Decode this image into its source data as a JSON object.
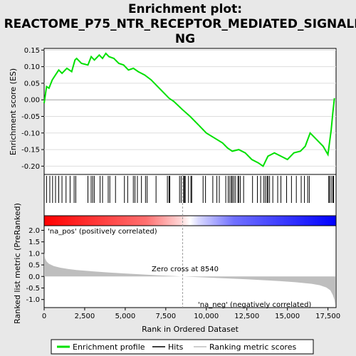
{
  "title_lines": [
    "Enrichment plot:",
    "REACTOME_P75_NTR_RECEPTOR_MEDIATED_SIGNALLI",
    "NG"
  ],
  "colors": {
    "enrichment_line": "#00e000",
    "hits": "#000000",
    "ranking_fill": "#bebebe",
    "zero_cross_line": "#a0a0a0",
    "pos_label": "#e00000",
    "neg_label": "#0000c0",
    "background": "#e8e8e8",
    "plot_background": "#ffffff"
  },
  "chart_data": [
    {
      "type": "line",
      "name": "enrichment-profile",
      "ylabel": "Enrichment score (ES)",
      "xlim": [
        0,
        18000
      ],
      "ylim": [
        -0.225,
        0.155
      ],
      "yticks": [
        0.15,
        0.1,
        0.05,
        0.0,
        -0.05,
        -0.1,
        -0.15,
        -0.2
      ],
      "ytick_labels": [
        "0.15",
        "0.10",
        "0.05",
        "0.00",
        "-0.05",
        "-0.10",
        "-0.15",
        "-0.20"
      ],
      "x": [
        0,
        150,
        300,
        500,
        700,
        900,
        1100,
        1400,
        1700,
        1900,
        2000,
        2300,
        2700,
        2900,
        3100,
        3400,
        3600,
        3800,
        4000,
        4300,
        4600,
        4900,
        5200,
        5500,
        5800,
        6200,
        6600,
        7000,
        7400,
        7700,
        8000,
        8540,
        9000,
        9500,
        10000,
        10500,
        11000,
        11300,
        11600,
        12000,
        12400,
        12800,
        13200,
        13500,
        13800,
        14200,
        14600,
        15000,
        15400,
        15800,
        16100,
        16400,
        16800,
        17200,
        17500,
        17700,
        17800,
        17900
      ],
      "y": [
        -0.01,
        0.04,
        0.035,
        0.06,
        0.075,
        0.09,
        0.08,
        0.095,
        0.085,
        0.12,
        0.125,
        0.11,
        0.105,
        0.13,
        0.12,
        0.135,
        0.125,
        0.14,
        0.13,
        0.125,
        0.11,
        0.105,
        0.09,
        0.095,
        0.085,
        0.075,
        0.06,
        0.04,
        0.02,
        0.005,
        -0.005,
        -0.03,
        -0.05,
        -0.075,
        -0.1,
        -0.115,
        -0.13,
        -0.145,
        -0.155,
        -0.15,
        -0.16,
        -0.18,
        -0.19,
        -0.2,
        -0.17,
        -0.16,
        -0.17,
        -0.18,
        -0.16,
        -0.155,
        -0.14,
        -0.1,
        -0.12,
        -0.14,
        -0.165,
        -0.09,
        -0.04,
        0.005
      ]
    },
    {
      "type": "hits",
      "name": "hits",
      "positions": [
        150,
        350,
        520,
        700,
        900,
        1100,
        1350,
        1600,
        1850,
        1950,
        2700,
        2900,
        3000,
        3100,
        3450,
        3600,
        3950,
        4050,
        4400,
        4950,
        5150,
        5500,
        5600,
        5750,
        6000,
        6250,
        6350,
        6900,
        7600,
        7700,
        7750,
        8350,
        8450,
        8600,
        8650,
        8700,
        8900,
        9050,
        9100,
        9800,
        9950,
        10400,
        10650,
        10800,
        11200,
        11350,
        11450,
        11550,
        11600,
        11700,
        11800,
        11950,
        12000,
        12100,
        12300,
        12850,
        13150,
        13350,
        13550,
        13650,
        13750,
        13800,
        13900,
        14100,
        14400,
        14600,
        14950,
        15250,
        15550,
        15850,
        16050,
        16250,
        16350,
        17550,
        17600,
        17700,
        17800,
        17850
      ]
    },
    {
      "type": "area",
      "name": "ranked-list-metric",
      "ylabel": "Ranked list metric (PreRanked)",
      "xlabel": "Rank in Ordered Dataset",
      "xlim": [
        0,
        18000
      ],
      "ylim": [
        -1.35,
        2.2
      ],
      "xticks": [
        0,
        2500,
        5000,
        7500,
        10000,
        12500,
        15000,
        17500
      ],
      "xtick_labels": [
        "0",
        "2,500",
        "5,000",
        "7,500",
        "10,000",
        "12,500",
        "15,000",
        "17,500"
      ],
      "yticks": [
        2.0,
        1.5,
        1.0,
        0.5,
        0.0,
        -0.5,
        -1.0
      ],
      "ytick_labels": [
        "2.0",
        "1.5",
        "1.0",
        "0.5",
        "0.0",
        "-0.5",
        "-1.0"
      ],
      "x": [
        0,
        50,
        150,
        300,
        600,
        1000,
        1500,
        2000,
        3000,
        4000,
        5000,
        6000,
        7000,
        8000,
        8540,
        9500,
        10500,
        11500,
        12500,
        13500,
        14500,
        15500,
        16500,
        17000,
        17400,
        17650,
        17800,
        17900,
        17950
      ],
      "values": [
        1.05,
        0.8,
        0.65,
        0.55,
        0.45,
        0.38,
        0.32,
        0.28,
        0.22,
        0.17,
        0.13,
        0.09,
        0.05,
        0.02,
        0.0,
        -0.03,
        -0.06,
        -0.09,
        -0.12,
        -0.16,
        -0.2,
        -0.25,
        -0.32,
        -0.38,
        -0.48,
        -0.6,
        -0.8,
        -1.0,
        -1.25
      ]
    }
  ],
  "annotations": {
    "pos_label": "'na_pos' (positively correlated)",
    "neg_label": "'na_neg' (negatively correlated)",
    "zero_cross": "Zero cross at 8540",
    "zero_cross_value": 8540
  },
  "legend": [
    {
      "label": "Enrichment profile",
      "kind": "line",
      "color": "#00e000"
    },
    {
      "label": "Hits",
      "kind": "line",
      "color": "#000000"
    },
    {
      "label": "Ranking metric scores",
      "kind": "line",
      "color": "#bebebe"
    }
  ]
}
